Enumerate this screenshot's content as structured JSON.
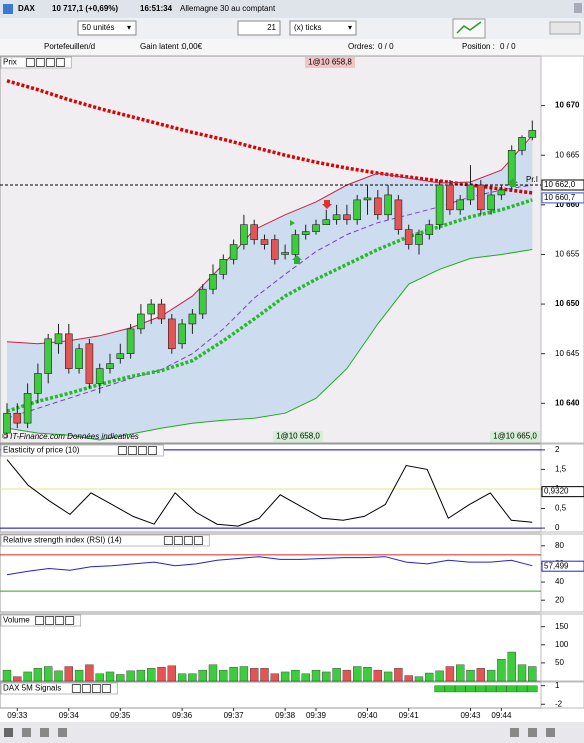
{
  "toolbar": {
    "symbol": "DAX",
    "quote": "10 717,1 (+0,69%)",
    "time": "16:51:34",
    "instrument": "Allemagne 30 au comptant",
    "quantity": "50 unités",
    "ticks_value": "21",
    "ticks_unit": "(x) ticks"
  },
  "account": {
    "portfolio_label": "Portefeuille:",
    "portfolio": "n/d",
    "gain_label": "Gain latent :",
    "gain": "0,00€",
    "orders_label": "Ordres:",
    "orders": "0 / 0",
    "position_label": "Position :",
    "position": "0 / 0"
  },
  "chart_data": [
    {
      "type": "candlestick",
      "title": "Prix",
      "up_color": "#3dcc3d",
      "down_color": "#e35555",
      "open": [
        10637,
        10639,
        10638,
        10641,
        10643,
        10646,
        10647,
        10643.5,
        10646,
        10642,
        10643.5,
        10644.5,
        10645,
        10647.5,
        10649,
        10650,
        10648.5,
        10646,
        10648,
        10649,
        10651.5,
        10653,
        10654.5,
        10656,
        10658,
        10656.5,
        10656.5,
        10655,
        10655,
        10657,
        10657.3,
        10658,
        10658.5,
        10659,
        10658.5,
        10660.5,
        10660.7,
        10659,
        10660.5,
        10657.5,
        10656,
        10657,
        10658,
        10662,
        10659.5,
        10660.5,
        10662,
        10659.5,
        10661,
        10662,
        10665.5,
        10666.8
      ],
      "high": [
        10640,
        10640,
        10642,
        10644,
        10647,
        10648,
        10648,
        10646,
        10646.5,
        10644,
        10645,
        10646,
        10648,
        10650,
        10650.5,
        10650.5,
        10649,
        10648.5,
        10649.5,
        10652,
        10654,
        10655,
        10656.5,
        10659,
        10658.5,
        10657,
        10657,
        10656,
        10657.5,
        10658,
        10658.5,
        10659.5,
        10660,
        10660,
        10661,
        10662,
        10661.5,
        10662,
        10661,
        10658,
        10657.5,
        10658.5,
        10662.5,
        10662.5,
        10661,
        10664,
        10662.5,
        10662,
        10662,
        10666,
        10667,
        10668.5
      ],
      "low": [
        10636.5,
        10637.5,
        10637.5,
        10640,
        10642,
        10645,
        10643,
        10643,
        10641.5,
        10641,
        10643,
        10644,
        10644.5,
        10647,
        10648,
        10648,
        10645,
        10645.5,
        10647,
        10648.5,
        10651,
        10652.5,
        10654,
        10655.5,
        10656,
        10655.5,
        10654,
        10654.5,
        10654.5,
        10656.5,
        10657,
        10658,
        10658,
        10658,
        10658,
        10659,
        10658.5,
        10658.5,
        10657,
        10655.5,
        10655,
        10656.5,
        10657.5,
        10659,
        10659,
        10660,
        10659,
        10659,
        10660.5,
        10661.5,
        10665,
        10666.5
      ],
      "close": [
        10639,
        10638,
        10641,
        10643,
        10646.5,
        10647,
        10643.5,
        10645.5,
        10642,
        10643.5,
        10644,
        10645,
        10647.5,
        10649,
        10650,
        10648.5,
        10645.5,
        10648,
        10649,
        10651.5,
        10653,
        10654.5,
        10656,
        10658,
        10656.5,
        10656,
        10654.5,
        10655.2,
        10657,
        10657.3,
        10658,
        10658.5,
        10659,
        10658.5,
        10660.5,
        10660.7,
        10659,
        10661,
        10657.5,
        10656,
        10657,
        10658,
        10662,
        10659.5,
        10660.5,
        10662,
        10659.5,
        10661,
        10661.5,
        10665.5,
        10666.8,
        10667.5
      ],
      "overlays": [
        {
          "color": "#dd0000",
          "style": "dotted",
          "values": [
            10672.5,
            10671.6,
            10670.6,
            10669.7,
            10668.9,
            10668.1,
            10667.3,
            10666.6,
            10665.8,
            10665.0,
            10664.3,
            10663.7,
            10663.2,
            10662.8,
            10662.4,
            10662.0,
            10661.6,
            10661.2
          ]
        },
        {
          "color": "#cc2244",
          "style": "band-upper",
          "values": [
            10646.2,
            10646.0,
            10646.3,
            10646.8,
            10647.6,
            10648.8,
            10650.8,
            10654.0,
            10657.5,
            10659.0,
            10660.3,
            10662.0,
            10663.2,
            10662.7,
            10662.2,
            10662.3,
            10663.5,
            10667.0
          ]
        },
        {
          "color": "#22aa22",
          "style": "band-lower",
          "values": [
            10637.5,
            10637.0,
            10636.8,
            10636.3,
            10636.9,
            10637.5,
            10638.0,
            10638.3,
            10638.5,
            10639.0,
            10640.5,
            10643.5,
            10648.0,
            10652.0,
            10653.5,
            10654.6,
            10655.0,
            10655.5
          ]
        },
        {
          "color": "#7a3fc0",
          "style": "dashed",
          "values": [
            10638.5,
            10639.5,
            10640.5,
            10641.5,
            10642.5,
            10643.4,
            10645.0,
            10647.5,
            10650.6,
            10653.0,
            10655.3,
            10657.0,
            10658.2,
            10659.0,
            10659.8,
            10660.8,
            10661.5,
            10662.0
          ]
        },
        {
          "color": "#22bb22",
          "style": "dotted",
          "values": [
            10639.2,
            10640.2,
            10641.0,
            10641.9,
            10642.7,
            10643.3,
            10644.3,
            10646.3,
            10648.5,
            10650.8,
            10652.5,
            10654.0,
            10655.5,
            10656.8,
            10657.8,
            10658.8,
            10659.5,
            10660.5
          ]
        }
      ],
      "ylim": [
        10636,
        10675
      ],
      "yticks": [
        {
          "value": 10640,
          "label": "10 640"
        },
        {
          "value": 10645,
          "label": "10 645"
        },
        {
          "value": 10650,
          "label": "10 650"
        },
        {
          "value": 10655,
          "label": "10 655"
        },
        {
          "value": 10660,
          "label": "10 660"
        },
        {
          "value": 10665,
          "label": "10 665"
        },
        {
          "value": 10670,
          "label": "10 670"
        }
      ],
      "markers": [
        {
          "value": 10662,
          "label": "10 662,0",
          "color": "#000000"
        },
        {
          "value": 10660.7,
          "label": "10 660,7",
          "color": "#3355cc"
        }
      ],
      "annotations": {
        "order_top": "1@10 658,8",
        "order_bottom_left": "1@10 658,0",
        "order_bottom_right": "1@10 665,0",
        "pivot": "Pr.I",
        "watermark": "© IT-Finance.com Données indicatives"
      }
    },
    {
      "type": "line",
      "title": "Elasticity of price (10)",
      "color": "#000000",
      "values": [
        1.75,
        1.1,
        0.7,
        0.35,
        0.9,
        0.6,
        0.3,
        0.1,
        0.9,
        0.4,
        0.1,
        0.05,
        0.25,
        0.85,
        0.55,
        0.25,
        0.2,
        0.3,
        0.6,
        1.6,
        1.5,
        0.25,
        0.6,
        0.9,
        0.2,
        0.15
      ],
      "levels": [
        {
          "value": 0,
          "color": "#0000cc"
        },
        {
          "value": 1,
          "color": "#e8e080"
        },
        {
          "value": 2,
          "color": "#0000cc"
        }
      ],
      "ylim": [
        -0.1,
        2.15
      ],
      "yticks": [
        0,
        {
          "value": 0.5,
          "label": "0,5"
        },
        1,
        {
          "value": 1.5,
          "label": "1,5"
        },
        2
      ],
      "markers": [
        {
          "value": 0.932,
          "label": "0,9320",
          "color": "#000000"
        }
      ]
    },
    {
      "type": "line",
      "title": "Relative strength index (RSI) (14)",
      "color": "#2222cc",
      "values": [
        48,
        52,
        55,
        53,
        57,
        58,
        60,
        62,
        58,
        60,
        64,
        66,
        68,
        65,
        65,
        66,
        67,
        67,
        68,
        62,
        60,
        64,
        62,
        62,
        64,
        58
      ],
      "levels": [
        {
          "value": 70,
          "color": "#dd2222"
        },
        {
          "value": 30,
          "color": "#22aa22"
        }
      ],
      "ylim": [
        7,
        93
      ],
      "yticks": [
        20,
        40,
        60,
        80
      ],
      "markers": [
        {
          "value": 57.499,
          "label": "57,499",
          "color": "#2222cc"
        }
      ]
    },
    {
      "type": "bar",
      "title": "Volume",
      "values": [
        30,
        12,
        25,
        35,
        40,
        28,
        40,
        30,
        45,
        20,
        25,
        18,
        28,
        30,
        35,
        38,
        42,
        20,
        20,
        30,
        45,
        30,
        38,
        40,
        35,
        35,
        20,
        25,
        30,
        20,
        30,
        25,
        35,
        30,
        40,
        38,
        30,
        25,
        35,
        15,
        12,
        22,
        28,
        40,
        45,
        30,
        35,
        30,
        60,
        80,
        45,
        40
      ],
      "ylim": [
        0,
        185
      ],
      "yticks": [
        50,
        100,
        150
      ]
    },
    {
      "type": "signal",
      "title": "DAX 5M Signals",
      "color": "#33cc33",
      "values": [
        0,
        0,
        0,
        0,
        0,
        0,
        0,
        0,
        0,
        0,
        0,
        0,
        0,
        0,
        0,
        0,
        0,
        0,
        0,
        0,
        0,
        0,
        0,
        0,
        0,
        0,
        0,
        0,
        0,
        0,
        0,
        0,
        0,
        0,
        0,
        0,
        0,
        0,
        0,
        0,
        0,
        0,
        1,
        1,
        1,
        1,
        1,
        1,
        1,
        1,
        1,
        1
      ],
      "ylim": [
        -2.6,
        1.6
      ],
      "yticks": [
        1,
        -2
      ],
      "categories": [
        null,
        "09:33",
        null,
        null,
        null,
        null,
        "09:34",
        null,
        null,
        null,
        null,
        "09:35",
        null,
        null,
        null,
        null,
        null,
        "09:36",
        null,
        null,
        null,
        null,
        "09:37",
        null,
        null,
        null,
        null,
        "09:38",
        null,
        null,
        "09:39",
        null,
        null,
        null,
        null,
        "09:40",
        null,
        null,
        null,
        "09:41",
        null,
        null,
        null,
        null,
        null,
        "09:43",
        null,
        null,
        "09:44",
        null,
        null,
        null
      ]
    }
  ]
}
